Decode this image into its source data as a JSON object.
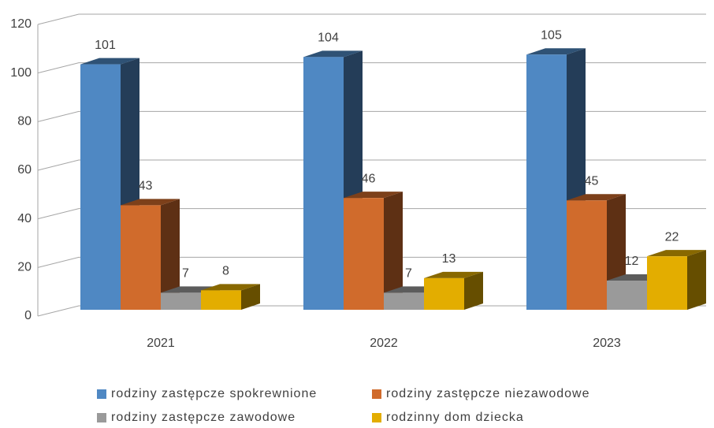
{
  "chart_data": {
    "type": "bar3d",
    "categories": [
      "2021",
      "2022",
      "2023"
    ],
    "series": [
      {
        "name": "rodziny zastępcze spokrewnione",
        "color": "#4f88c3",
        "values": [
          101,
          104,
          105
        ]
      },
      {
        "name": "rodziny zastępcze niezawodowe",
        "color": "#d06b2c",
        "values": [
          43,
          46,
          45
        ]
      },
      {
        "name": "rodziny zastępcze zawodowe",
        "color": "#9a9a9a",
        "values": [
          7,
          7,
          12
        ]
      },
      {
        "name": "rodzinny dom dziecka",
        "color": "#e3ad00",
        "values": [
          8,
          13,
          22
        ]
      }
    ],
    "ylim": [
      0,
      120
    ],
    "yticks": [
      0,
      20,
      40,
      60,
      80,
      100,
      120
    ],
    "grid": true,
    "legend": "bottom"
  }
}
